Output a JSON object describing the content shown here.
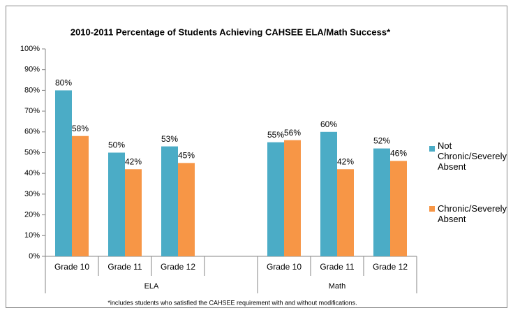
{
  "chart_data": {
    "type": "bar",
    "title": "2010-2011 Percentage of Students Achieving CAHSEE ELA/Math Success*",
    "footnote": "*includes students who satisfied the CAHSEE requirement with and without modifications.",
    "categories": [
      "Grade 10",
      "Grade 11",
      "Grade 12",
      null,
      "Grade 10",
      "Grade 11",
      "Grade 12"
    ],
    "groups": [
      {
        "label": "ELA",
        "size": 4
      },
      {
        "label": "Math",
        "size": 3
      }
    ],
    "series": [
      {
        "name": "Not Chronic/Severely Absent",
        "color": "#4bacc6",
        "values": [
          80,
          50,
          53,
          null,
          55,
          60,
          52
        ],
        "value_labels": [
          "80%",
          "50%",
          "53%",
          null,
          "55%",
          "60%",
          "52%"
        ]
      },
      {
        "name": "Chronic/Severely Absent",
        "color": "#f79646",
        "values": [
          58,
          42,
          45,
          null,
          56,
          42,
          46
        ],
        "value_labels": [
          "58%",
          "42%",
          "45%",
          null,
          "56%",
          "42%",
          "46%"
        ]
      }
    ],
    "ylim": [
      0,
      100
    ],
    "yticks": [
      {
        "value": 0,
        "label": "0%"
      },
      {
        "value": 10,
        "label": "10%"
      },
      {
        "value": 20,
        "label": "20%"
      },
      {
        "value": 30,
        "label": "30%"
      },
      {
        "value": 40,
        "label": "40%"
      },
      {
        "value": 50,
        "label": "50%"
      },
      {
        "value": 60,
        "label": "60%"
      },
      {
        "value": 70,
        "label": "70%"
      },
      {
        "value": 80,
        "label": "80%"
      },
      {
        "value": 90,
        "label": "90%"
      },
      {
        "value": 100,
        "label": "100%"
      }
    ],
    "grid": false,
    "legend": "right"
  }
}
